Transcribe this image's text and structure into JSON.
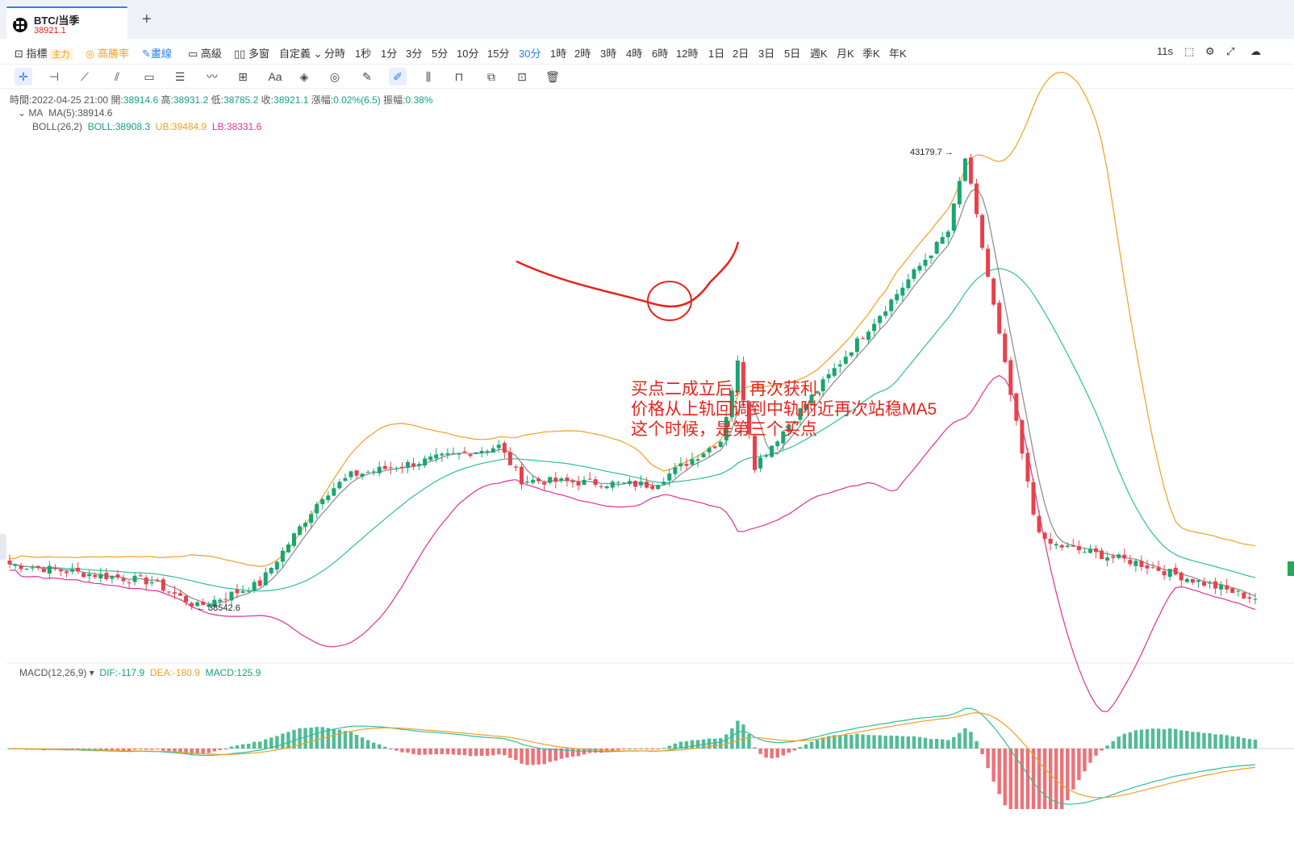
{
  "tab": {
    "title": "BTC/当季",
    "price": "38921.1",
    "add": "+"
  },
  "toolbar": {
    "indicator": "指標",
    "main": "主力",
    "winrate": "高勝率",
    "draw": "畫線",
    "advanced": "高級",
    "multiwin": "多窗",
    "custom": "自定義",
    "periods": [
      "分時",
      "1秒",
      "1分",
      "3分",
      "5分",
      "10分",
      "15分",
      "30分",
      "1時",
      "2時",
      "3時",
      "4時",
      "6時",
      "12時",
      "1日",
      "2日",
      "3日",
      "5日",
      "週K",
      "月K",
      "季K",
      "年K"
    ],
    "active_period": "30分",
    "refresh": "11s"
  },
  "drawtools": [
    "cursor",
    "horizontal-line",
    "ray",
    "parallel",
    "rectangle",
    "fib",
    "wave",
    "measure",
    "text",
    "pattern-a",
    "pattern-b",
    "ruler",
    "pencil",
    "candle-compare",
    "lock",
    "copy",
    "settings",
    "trash"
  ],
  "info": {
    "time": "時間:2022-04-25 21:00",
    "open_label": "開:",
    "open": "38914.6",
    "high_label": "高:",
    "high": "38931.2",
    "low_label": "低:",
    "low": "38785.2",
    "close_label": "收:",
    "close": "38921.1",
    "change_label": "漲幅:",
    "change": "0.02%(6.5)",
    "amp_label": "振幅:",
    "amp": "0.38%"
  },
  "ma": {
    "name": "MA",
    "ma5": "MA(5):38914.6"
  },
  "boll": {
    "name": "BOLL(26,2)",
    "mid": "BOLL:38908.3",
    "ub": "UB:39484.9",
    "lb": "LB:38331.6"
  },
  "macd": {
    "name": "MACD(12,26,9)",
    "dif": "DIF:-117.9",
    "dea": "DEA:-180.9",
    "macd": "MACD:125.9"
  },
  "markers": {
    "high": "43179.7 →",
    "low": "← 38542.6"
  },
  "annotation": [
    "买点二成立后，再次获利,",
    "价格从上轨回调到中轨附近再次站稳MA5",
    "这个时候，是第三个买点"
  ],
  "colors": {
    "up": "#17a672",
    "down": "#e8414a",
    "ub": "#f0a020",
    "mid": "#2bbf9c",
    "lb": "#e0309a",
    "ma5": "#888888",
    "annotation": "#e8231b",
    "dif": "#2bbf9c",
    "dea": "#f0a020"
  },
  "chart_data": {
    "type": "candlestick",
    "series": [
      {
        "name": "BTC/当季 30分",
        "close_pivots": [
          38980,
          38800,
          38543,
          38780,
          39690,
          39900,
          40200,
          39850,
          39800,
          40260,
          41060,
          40000,
          42420,
          43180,
          39500,
          39200,
          39000,
          38621
        ]
      }
    ],
    "annotations": [
      {
        "price": 43179.7,
        "text": "43179.7"
      },
      {
        "price": 38542.6,
        "text": "38542.6"
      }
    ]
  }
}
